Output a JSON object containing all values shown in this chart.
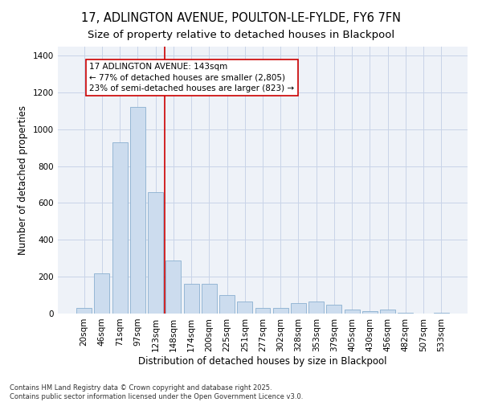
{
  "title_line1": "17, ADLINGTON AVENUE, POULTON-LE-FYLDE, FY6 7FN",
  "title_line2": "Size of property relative to detached houses in Blackpool",
  "xlabel": "Distribution of detached houses by size in Blackpool",
  "ylabel": "Number of detached properties",
  "categories": [
    "20sqm",
    "46sqm",
    "71sqm",
    "97sqm",
    "123sqm",
    "148sqm",
    "174sqm",
    "200sqm",
    "225sqm",
    "251sqm",
    "277sqm",
    "302sqm",
    "328sqm",
    "353sqm",
    "379sqm",
    "405sqm",
    "430sqm",
    "456sqm",
    "482sqm",
    "507sqm",
    "533sqm"
  ],
  "values": [
    30,
    220,
    930,
    1120,
    660,
    290,
    160,
    160,
    100,
    65,
    30,
    30,
    55,
    65,
    50,
    20,
    15,
    20,
    5,
    0,
    5
  ],
  "bar_color": "#ccdcee",
  "bar_edge_color": "#8ab0d0",
  "vline_color": "#cc0000",
  "annotation_text": "17 ADLINGTON AVENUE: 143sqm\n← 77% of detached houses are smaller (2,805)\n23% of semi-detached houses are larger (823) →",
  "annotation_box_color": "#ffffff",
  "annotation_box_edge": "#cc0000",
  "ylim": [
    0,
    1450
  ],
  "yticks": [
    0,
    200,
    400,
    600,
    800,
    1000,
    1200,
    1400
  ],
  "footnote": "Contains HM Land Registry data © Crown copyright and database right 2025.\nContains public sector information licensed under the Open Government Licence v3.0.",
  "grid_color": "#c8d4e8",
  "background_color": "#eef2f8",
  "title_fontsize": 10.5,
  "subtitle_fontsize": 9.5,
  "axis_label_fontsize": 8.5,
  "tick_fontsize": 7.5,
  "annotation_fontsize": 7.5,
  "footnote_fontsize": 6.0
}
